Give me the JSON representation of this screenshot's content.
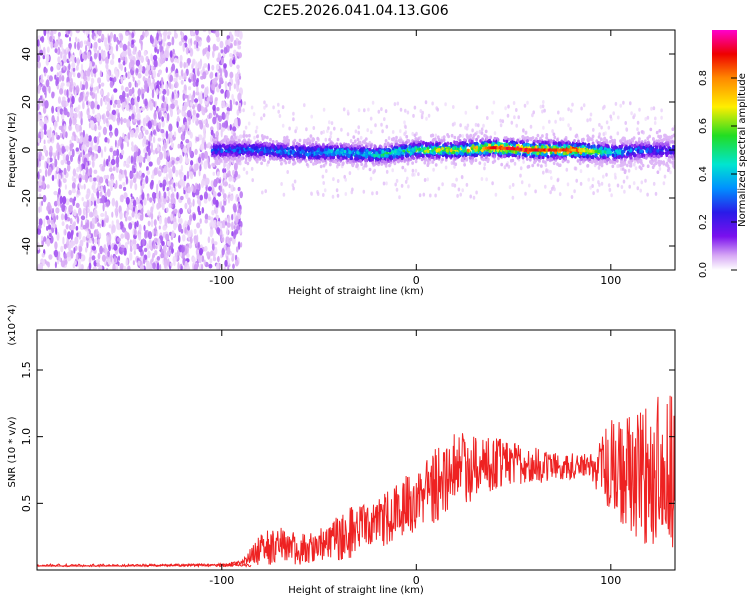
{
  "title": "C2E5.2026.041.04.13.G06",
  "chart_data": [
    {
      "type": "heatmap",
      "name": "spectrogram",
      "xlabel": "Height of straight line (km)",
      "ylabel": "Frequency (Hz)",
      "xlim": [
        -195,
        133
      ],
      "ylim": [
        -50,
        50
      ],
      "xticks": [
        -100,
        0,
        100
      ],
      "yticks": [
        40,
        20,
        0,
        -20,
        -40
      ],
      "colorbar": {
        "label": "Normalized spectral amplitude",
        "range": [
          0.0,
          1.0
        ],
        "ticks": [
          0.0,
          0.2,
          0.4,
          0.6,
          0.8
        ],
        "colormap": [
          "#ffffff",
          "#d7a8f5",
          "#7a10ee",
          "#2a1be8",
          "#0090ff",
          "#00e5d0",
          "#22dd22",
          "#ffee00",
          "#ff8800",
          "#ee0000",
          "#ff00cc"
        ]
      },
      "noise_region_x": [
        -195,
        -90
      ],
      "signal_ridge": {
        "x": [
          -105,
          -80,
          -60,
          -40,
          -20,
          0,
          20,
          40,
          60,
          80,
          100,
          120,
          133
        ],
        "freq": [
          0,
          0,
          -1,
          -1,
          -2,
          0,
          0,
          1,
          0,
          0,
          -1,
          0,
          0
        ],
        "peak_amplitude": [
          0.3,
          0.35,
          0.4,
          0.45,
          0.5,
          0.6,
          0.7,
          0.95,
          0.95,
          0.9,
          0.5,
          0.3,
          0.3
        ]
      }
    },
    {
      "type": "line",
      "name": "snr",
      "xlabel": "Height of straight line (km)",
      "ylabel": "SNR (10 * v/v)",
      "y_multiplier": "(x10^4)",
      "xlim": [
        -195,
        133
      ],
      "ylim": [
        0,
        1.8
      ],
      "xticks": [
        -100,
        0,
        100
      ],
      "yticks": [
        0.5,
        1.0,
        1.5
      ],
      "ytick_labels": [
        "0.5",
        "1.0",
        "1.5"
      ],
      "series": [
        {
          "name": "SNR",
          "color": "#ee2222",
          "x": [
            -195,
            -150,
            -100,
            -90,
            -80,
            -70,
            -60,
            -50,
            -40,
            -30,
            -20,
            -10,
            0,
            10,
            20,
            30,
            40,
            50,
            60,
            70,
            80,
            90,
            100,
            110,
            120,
            130,
            133
          ],
          "values": [
            0.03,
            0.03,
            0.04,
            0.05,
            0.15,
            0.2,
            0.15,
            0.18,
            0.25,
            0.3,
            0.35,
            0.45,
            0.5,
            0.65,
            0.75,
            0.78,
            0.8,
            0.8,
            0.78,
            0.78,
            0.78,
            0.75,
            0.78,
            0.7,
            0.7,
            0.8,
            0.7
          ],
          "envelope": [
            0.0,
            0.0,
            0.01,
            0.02,
            0.12,
            0.15,
            0.12,
            0.12,
            0.18,
            0.2,
            0.2,
            0.22,
            0.25,
            0.3,
            0.3,
            0.25,
            0.2,
            0.15,
            0.15,
            0.1,
            0.1,
            0.12,
            0.35,
            0.45,
            0.55,
            0.6,
            0.6
          ]
        }
      ]
    }
  ]
}
